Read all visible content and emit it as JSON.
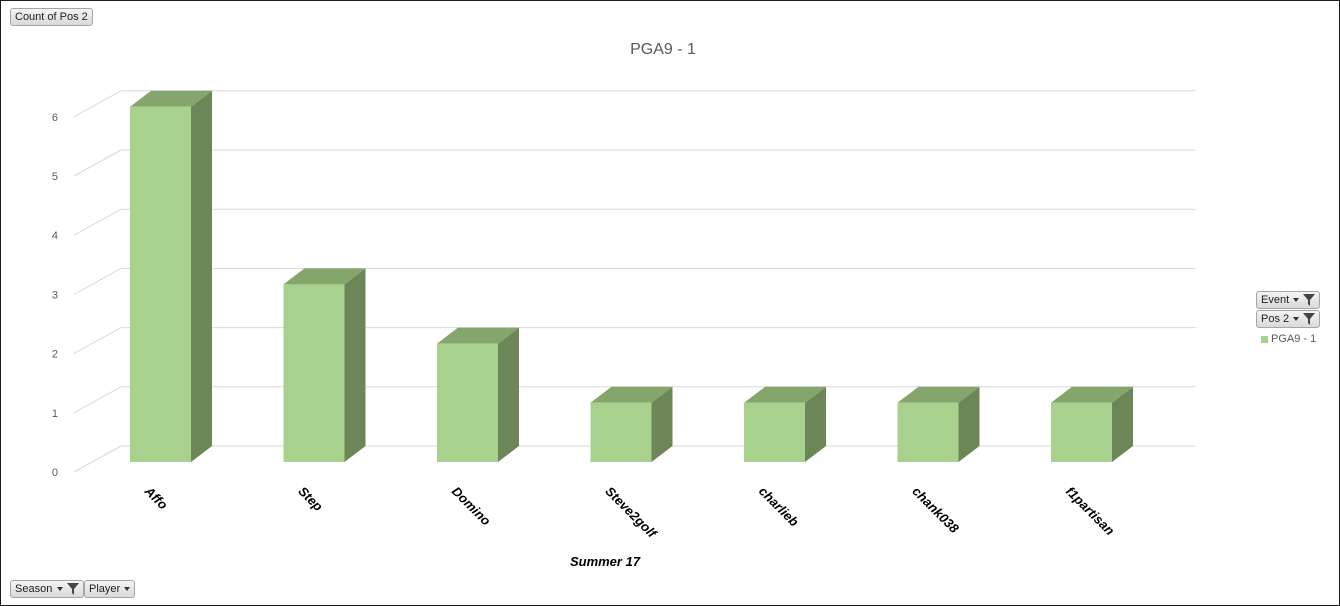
{
  "field_buttons": {
    "value_field": "Count of Pos 2",
    "filter_event": "Event",
    "filter_pos2": "Pos 2",
    "axis_season": "Season",
    "axis_player": "Player"
  },
  "icons": {
    "dropdown": "chevron-down-icon",
    "filter": "filter-funnel-icon"
  },
  "colors": {
    "bar_front": "#a9d18e",
    "bar_top": "#84a56c",
    "bar_side": "#6c8658",
    "gridline": "#d9d9d9",
    "text": "#595959"
  },
  "chart_data": {
    "type": "bar",
    "style": "3d-column",
    "title": "PGA9 - 1",
    "xlabel": "Summer 17",
    "ylabel": "",
    "categories": [
      "Affo",
      "Step",
      "Domino",
      "Steve2golf",
      "charlieb",
      "chank038",
      "f1partisan"
    ],
    "series": [
      {
        "name": "PGA9 - 1",
        "values": [
          6,
          3,
          2,
          1,
          1,
          1,
          1
        ]
      }
    ],
    "ylim": [
      0,
      6
    ],
    "yticks": [
      "0",
      "1",
      "2",
      "3",
      "4",
      "5",
      "6"
    ],
    "grid": true,
    "legend": "right"
  }
}
